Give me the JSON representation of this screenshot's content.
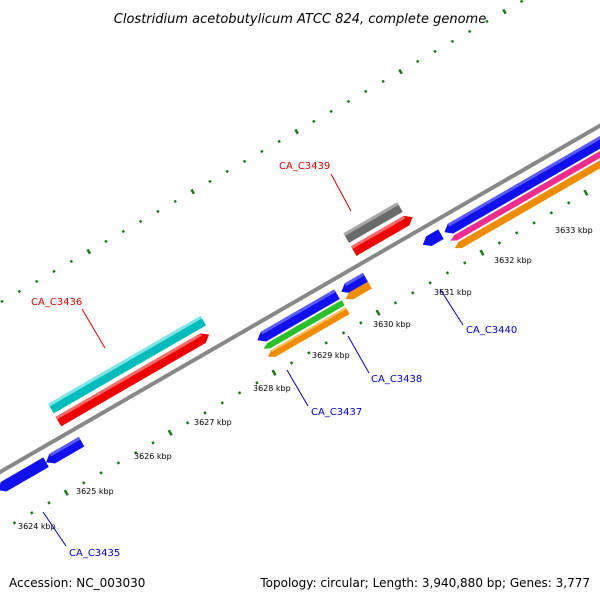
{
  "title": "Clostridium acetobutylicum ATCC 824, complete genome",
  "footer": {
    "accession": "Accession: NC_003030",
    "info": "Topology: circular; Length: 3,940,880 bp; Genes: 3,777"
  },
  "colors": {
    "backbone": "#888888",
    "tick": "#1a7a1a",
    "forward_label": "#dd0000",
    "reverse_label": "#0000cc"
  },
  "kbp_labels": [
    "3624 kbp",
    "3625 kbp",
    "3626 kbp",
    "3627 kbp",
    "3628 kbp",
    "3629 kbp",
    "3630 kbp",
    "3631 kbp",
    "3632 kbp",
    "3633 kbp"
  ],
  "gene_labels": {
    "c3436": "CA_C3436",
    "c3439": "CA_C3439",
    "c3435": "CA_C3435",
    "c3437": "CA_C3437",
    "c3438": "CA_C3438",
    "c3440": "CA_C3440"
  }
}
